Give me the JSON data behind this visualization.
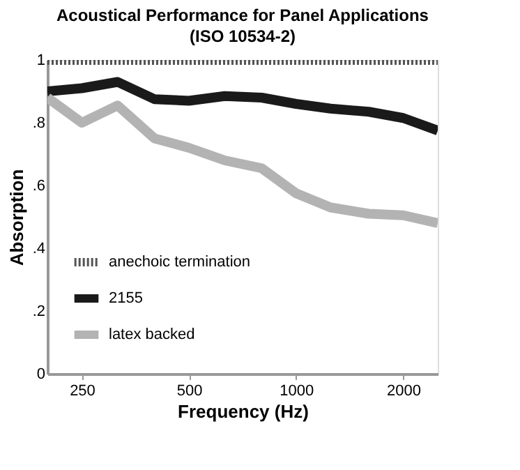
{
  "chart_data": {
    "type": "line",
    "title": "Acoustical Performance for Panel Applications",
    "subtitle": "(ISO 10534-2)",
    "xlabel": "Frequency (Hz)",
    "ylabel": "Absorption",
    "x": [
      200,
      250,
      315,
      400,
      500,
      630,
      800,
      1000,
      1250,
      1600,
      2000,
      2500
    ],
    "series": [
      {
        "name": "anechoic termination",
        "color": "#555555",
        "line_style": "dotted",
        "values": [
          1,
          1,
          1,
          1,
          1,
          1,
          1,
          1,
          1,
          1,
          1,
          1
        ]
      },
      {
        "name": "2155",
        "color": "#1a1a1a",
        "line_style": "solid",
        "values": [
          0.9,
          0.91,
          0.93,
          0.875,
          0.87,
          0.885,
          0.88,
          0.86,
          0.845,
          0.835,
          0.815,
          0.775
        ]
      },
      {
        "name": "latex backed",
        "color": "#b3b3b3",
        "line_style": "solid",
        "values": [
          0.88,
          0.8,
          0.855,
          0.75,
          0.72,
          0.68,
          0.655,
          0.575,
          0.53,
          0.51,
          0.505,
          0.48
        ]
      }
    ],
    "log": "x",
    "xlim": [
      200,
      2500
    ],
    "xticks": [
      250,
      500,
      1000,
      2000
    ],
    "ylim": [
      0,
      1
    ],
    "yticks": [
      0,
      {
        "value": 0.2,
        "label": ".2"
      },
      {
        "value": 0.4,
        "label": ".4"
      },
      {
        "value": 0.6,
        "label": ".6"
      },
      {
        "value": 0.8,
        "label": ".8"
      },
      1
    ],
    "grid": false,
    "legend": "bottom left",
    "marker": "none"
  }
}
